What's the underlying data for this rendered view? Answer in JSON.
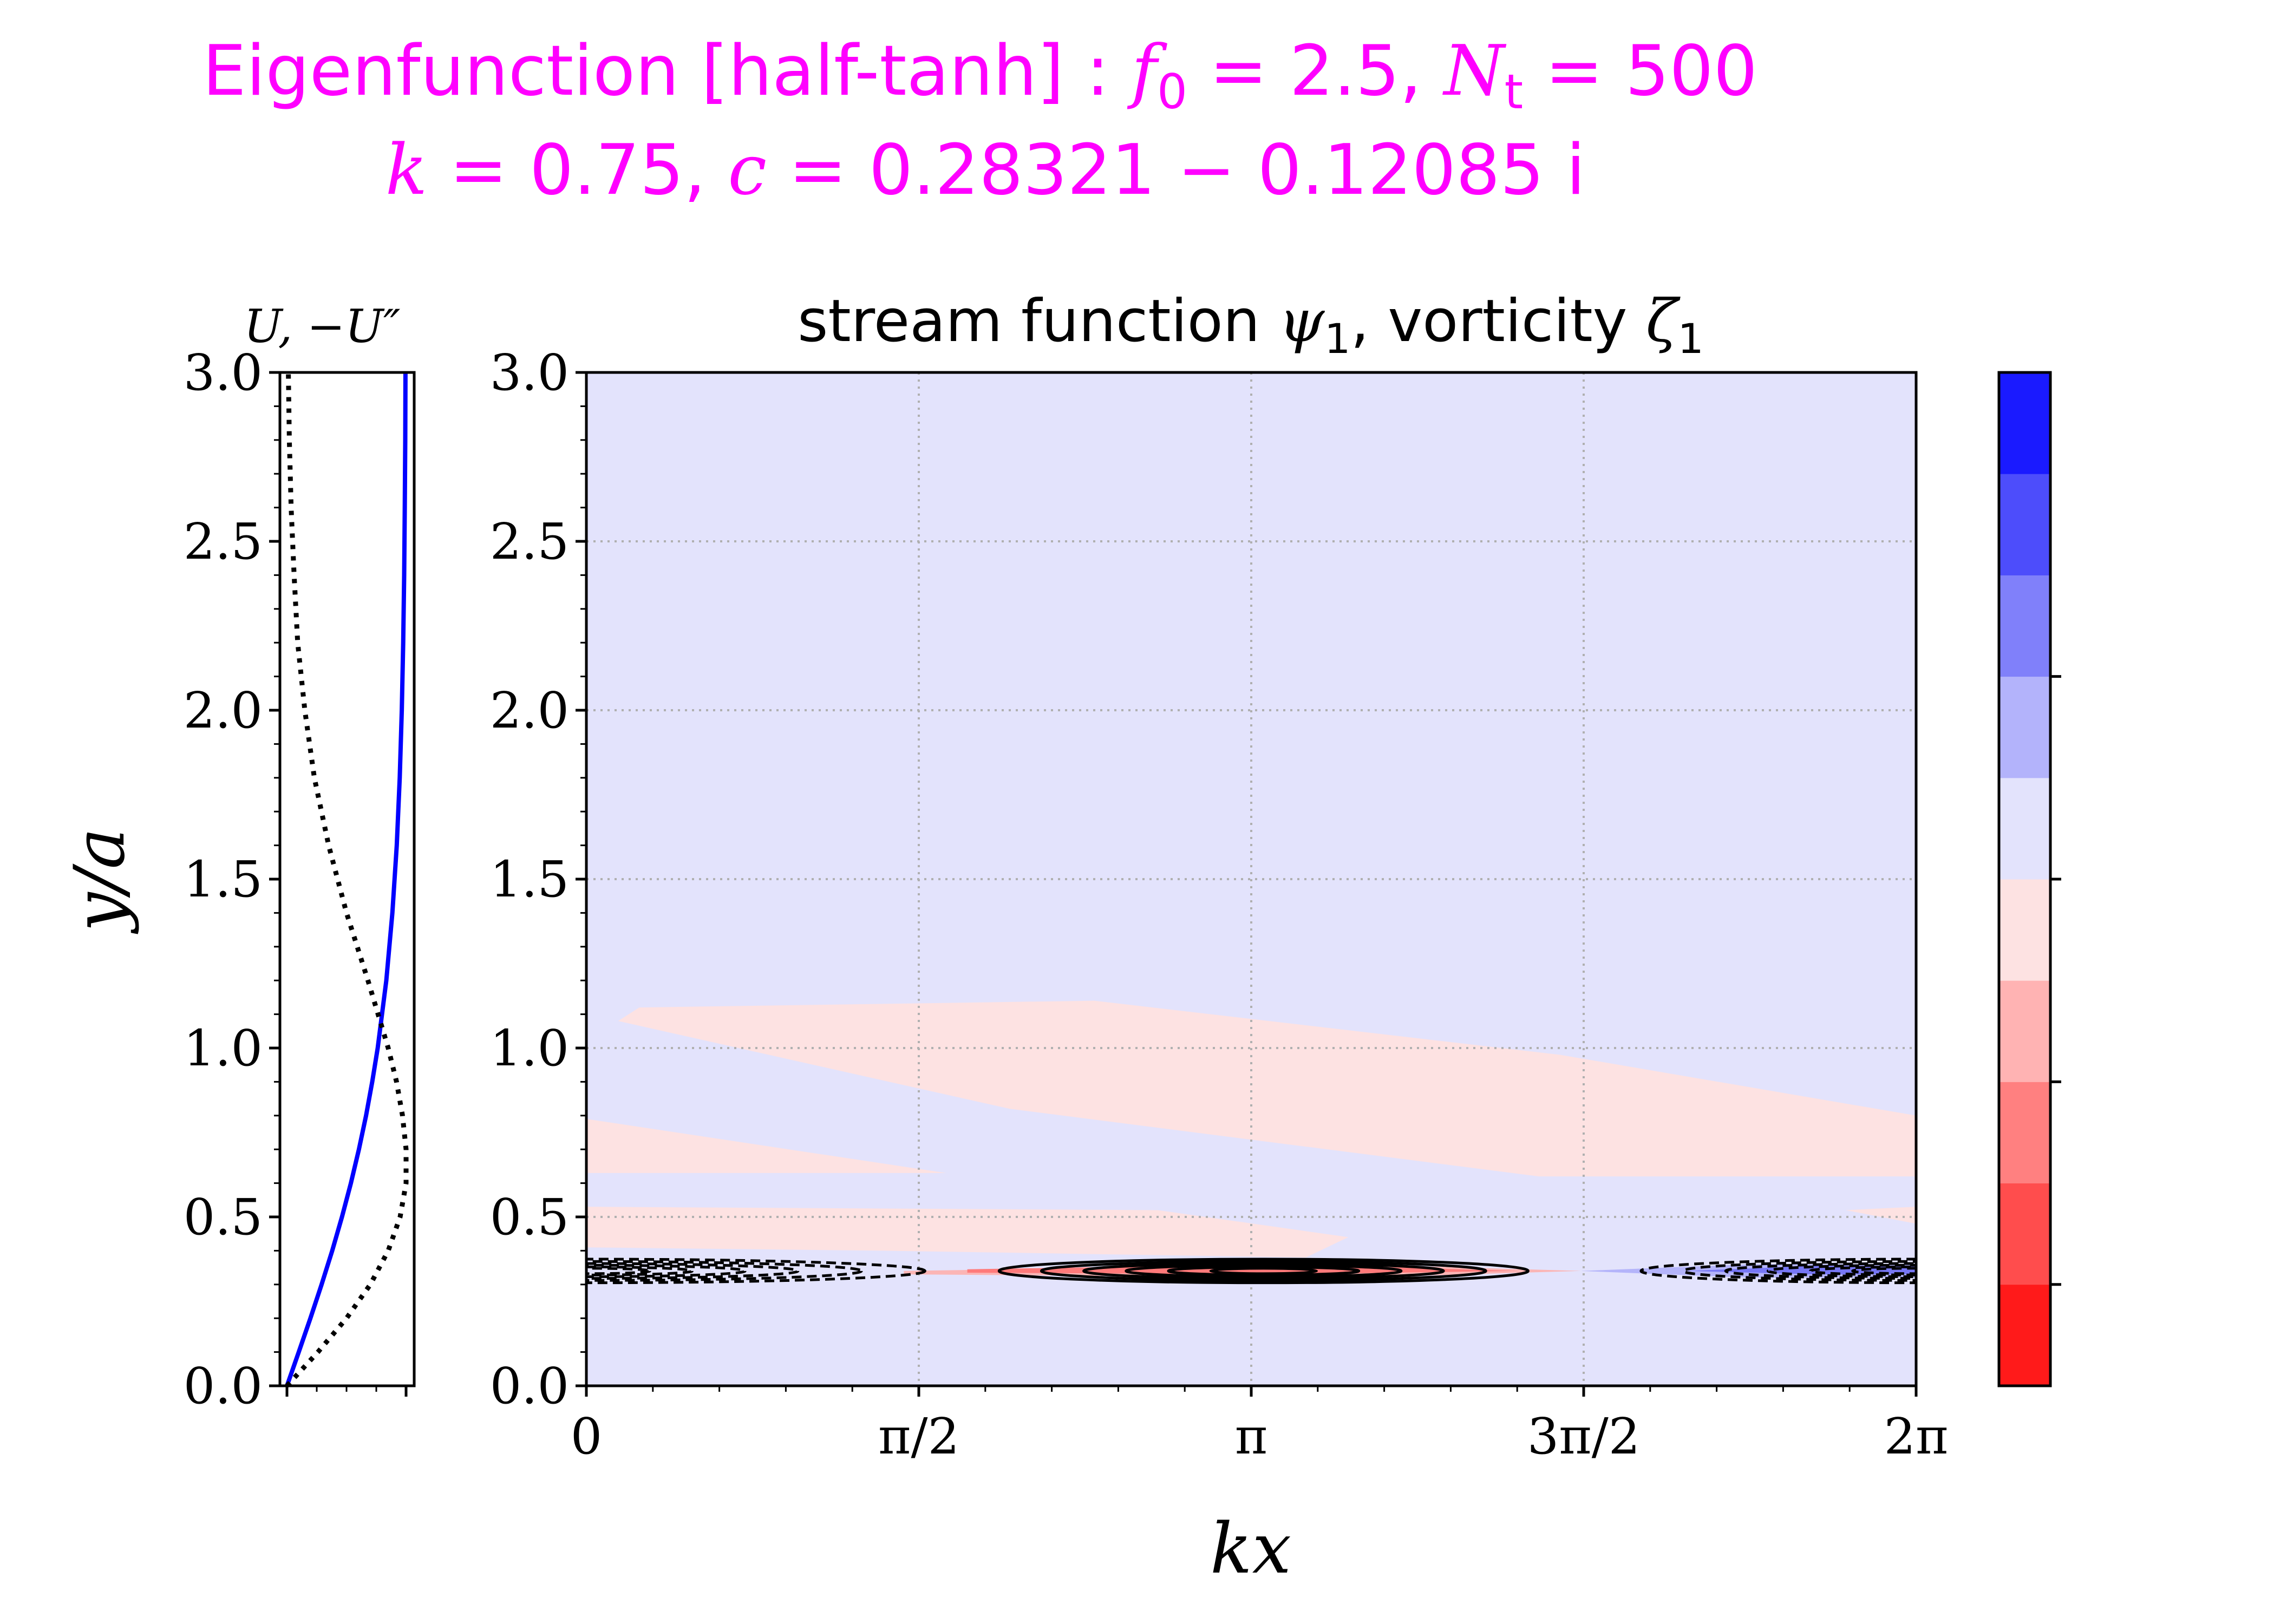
{
  "figure": {
    "title_line1_prefix": "Eigenfunction [half-tanh] : ",
    "title_line1_f0_symbol": "f",
    "title_line1_f0_sub": "0",
    "title_line1_f0_value": " = 2.5, ",
    "title_line1_nt_symbol": "N",
    "title_line1_nt_sub": "t",
    "title_line1_nt_value": " = 500",
    "title_line2_k_symbol": "k",
    "title_line2_k_value": " = 0.75, ",
    "title_line2_c_symbol": "c",
    "title_line2_c_value": " = 0.28321 − 0.12085 ",
    "title_line2_imag": "i",
    "title_color": "#ff00ff"
  },
  "chart_data": [
    {
      "type": "line",
      "title": "U, −U″",
      "ylabel": "y/a",
      "ylim": [
        0,
        3
      ],
      "yticks": [
        "0.0",
        "0.5",
        "1.0",
        "1.5",
        "2.0",
        "2.5",
        "3.0"
      ],
      "series": [
        {
          "name": "U",
          "style": "solid",
          "color": "#0000ff",
          "y": [
            0.0,
            0.1,
            0.2,
            0.3,
            0.4,
            0.5,
            0.6,
            0.7,
            0.8,
            0.9,
            1.0,
            1.2,
            1.4,
            1.6,
            1.8,
            2.0,
            2.2,
            2.4,
            2.6,
            2.8,
            3.0
          ],
          "value": [
            0.0,
            0.099,
            0.197,
            0.291,
            0.38,
            0.462,
            0.537,
            0.604,
            0.664,
            0.716,
            0.762,
            0.834,
            0.885,
            0.922,
            0.947,
            0.964,
            0.976,
            0.984,
            0.989,
            0.993,
            0.995
          ]
        },
        {
          "name": "−U″",
          "style": "dotted",
          "color": "#000000",
          "y": [
            0.0,
            0.1,
            0.2,
            0.3,
            0.4,
            0.5,
            0.6,
            0.7,
            0.8,
            0.9,
            1.0,
            1.2,
            1.4,
            1.6,
            1.8,
            2.0,
            2.2,
            2.4,
            2.6,
            2.8,
            3.0
          ],
          "value": [
            0.0,
            0.26,
            0.5,
            0.7,
            0.85,
            0.95,
            1.0,
            1.0,
            0.97,
            0.92,
            0.85,
            0.68,
            0.5,
            0.35,
            0.23,
            0.15,
            0.09,
            0.06,
            0.035,
            0.02,
            0.012
          ]
        }
      ]
    },
    {
      "type": "heatmap",
      "title_prefix": "stream function ",
      "title_psi": "ψ",
      "title_psi_sub": "1",
      "title_mid": ", vorticity ",
      "title_zeta": "ζ",
      "title_zeta_sub": "1",
      "xlabel": "kx",
      "xlim": [
        0,
        6.2832
      ],
      "xticks": [
        {
          "label": "0",
          "value": 0
        },
        {
          "label": "π/2",
          "value": 1.5708
        },
        {
          "label": "π",
          "value": 3.1416
        },
        {
          "label": "3π/2",
          "value": 4.7124
        },
        {
          "label": "2π",
          "value": 6.2832
        }
      ],
      "ylim": [
        0,
        3
      ],
      "yticks": [
        "0.0",
        "0.5",
        "1.0",
        "1.5",
        "2.0",
        "2.5",
        "3.0"
      ],
      "grid": true,
      "background_color": "#e3e3fc",
      "vorticity_regions": [
        {
          "level": "weak-positive",
          "color": "#fde2e2",
          "x": [
            0.25,
            2.4,
            4.6,
            6.2832,
            6.2832,
            4.5,
            2.0,
            0.15
          ],
          "y": [
            1.12,
            1.14,
            0.98,
            0.8,
            0.62,
            0.62,
            0.82,
            1.08
          ]
        },
        {
          "level": "weak-positive",
          "color": "#fde2e2",
          "x": [
            0,
            1.7,
            0
          ],
          "y": [
            0.79,
            0.63,
            0.63
          ]
        },
        {
          "level": "weak-positive",
          "color": "#fde2e2",
          "x": [
            0,
            2.7,
            3.6,
            3.4,
            1.4,
            0
          ],
          "y": [
            0.53,
            0.52,
            0.44,
            0.38,
            0.4,
            0.41
          ]
        },
        {
          "level": "weak-positive",
          "color": "#fde2e2",
          "x": [
            5.95,
            6.2832,
            6.2832
          ],
          "y": [
            0.52,
            0.53,
            0.48
          ]
        },
        {
          "level": "medium-positive",
          "color": "#fbb5b5",
          "x": [
            1.5,
            3.6,
            4.7,
            3.6,
            1.5
          ],
          "y": [
            0.34,
            0.36,
            0.34,
            0.32,
            0.33
          ]
        },
        {
          "level": "strong-positive",
          "color": "#ff7a7a",
          "x": [
            1.8,
            3.3,
            4.4,
            3.3,
            1.8
          ],
          "y": [
            0.345,
            0.36,
            0.34,
            0.33,
            0.335
          ]
        },
        {
          "level": "medium-negative",
          "color": "#b4b4fa",
          "x": [
            4.7,
            5.5,
            6.2832,
            6.2832,
            5.5,
            4.7
          ],
          "y": [
            0.34,
            0.36,
            0.36,
            0.32,
            0.32,
            0.34
          ]
        },
        {
          "level": "strong-negative",
          "color": "#7777f5",
          "x": [
            5.2,
            5.8,
            6.2832,
            6.2832,
            5.8,
            5.2
          ],
          "y": [
            0.34,
            0.355,
            0.355,
            0.33,
            0.33,
            0.34
          ]
        }
      ],
      "stream_contours": [
        {
          "sign": "positive",
          "style": "solid",
          "center_x": 3.2,
          "center_y": 0.34,
          "half_width_x": [
            1.25,
            1.05,
            0.85,
            0.65,
            0.45,
            0.25
          ],
          "half_height_y": [
            0.035,
            0.028,
            0.022,
            0.017,
            0.012,
            0.008
          ]
        },
        {
          "sign": "negative",
          "style": "dashed",
          "center_x": 6.2832,
          "center_y": 0.34,
          "half_width_x": [
            1.3,
            1.1,
            0.9,
            0.7,
            0.5,
            0.3
          ],
          "half_height_y": [
            0.035,
            0.028,
            0.022,
            0.017,
            0.012,
            0.008
          ]
        },
        {
          "sign": "negative",
          "style": "dashed",
          "center_x": 0,
          "center_y": 0.34,
          "half_width_x": [
            1.6,
            1.3,
            1.0,
            0.75,
            0.5,
            0.3
          ],
          "half_height_y": [
            0.035,
            0.028,
            0.022,
            0.017,
            0.012,
            0.008
          ]
        }
      ]
    },
    {
      "type": "colorbar",
      "levels_bottom_to_top": [
        "#ff1a1a",
        "#ff4d4d",
        "#ff8080",
        "#ffb3b3",
        "#fde2e2",
        "#e3e3fc",
        "#b3b3fb",
        "#8080fa",
        "#4d4dfb",
        "#1a1aff"
      ],
      "tick_count": 4
    }
  ]
}
